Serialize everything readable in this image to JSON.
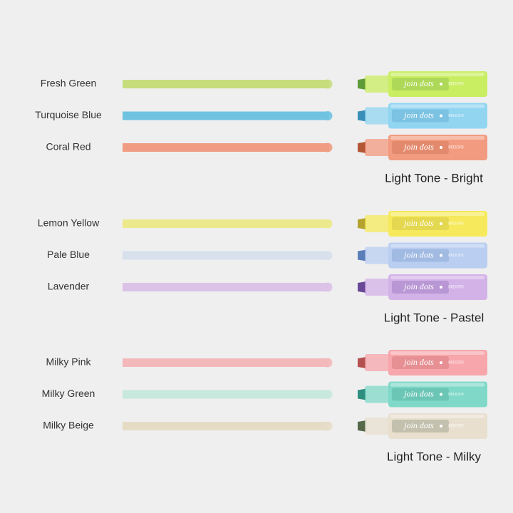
{
  "brand": "join dots",
  "maker": "MIDORI",
  "groups": [
    {
      "title": "Light Tone - Bright",
      "items": [
        {
          "name": "Fresh Green",
          "stroke": "#c7dd7c",
          "body": "#c9ee62",
          "tip": "#5f9a3a"
        },
        {
          "name": "Turquoise Blue",
          "stroke": "#70c3e0",
          "body": "#92d5f1",
          "tip": "#3a8db8"
        },
        {
          "name": "Coral Red",
          "stroke": "#ef9c82",
          "body": "#f39b80",
          "tip": "#b35636"
        }
      ]
    },
    {
      "title": "Light Tone - Pastel",
      "items": [
        {
          "name": "Lemon Yellow",
          "stroke": "#ece98c",
          "body": "#f6ea5c",
          "tip": "#b4a22e"
        },
        {
          "name": "Pale Blue",
          "stroke": "#d7e0ec",
          "body": "#b9cef1",
          "tip": "#5a7eb8"
        },
        {
          "name": "Lavender",
          "stroke": "#dbc2e7",
          "body": "#d3b2e8",
          "tip": "#6a4896"
        }
      ]
    },
    {
      "title": "Light Tone - Milky",
      "items": [
        {
          "name": "Milky Pink",
          "stroke": "#f3b8ba",
          "body": "#f7a6ab",
          "tip": "#b45050"
        },
        {
          "name": "Milky Green",
          "stroke": "#c6e8dd",
          "body": "#80d9c8",
          "tip": "#2e8e7f"
        },
        {
          "name": "Milky Beige",
          "stroke": "#e6dcc6",
          "body": "#e8dfcf",
          "tip": "#55694a"
        }
      ]
    }
  ]
}
